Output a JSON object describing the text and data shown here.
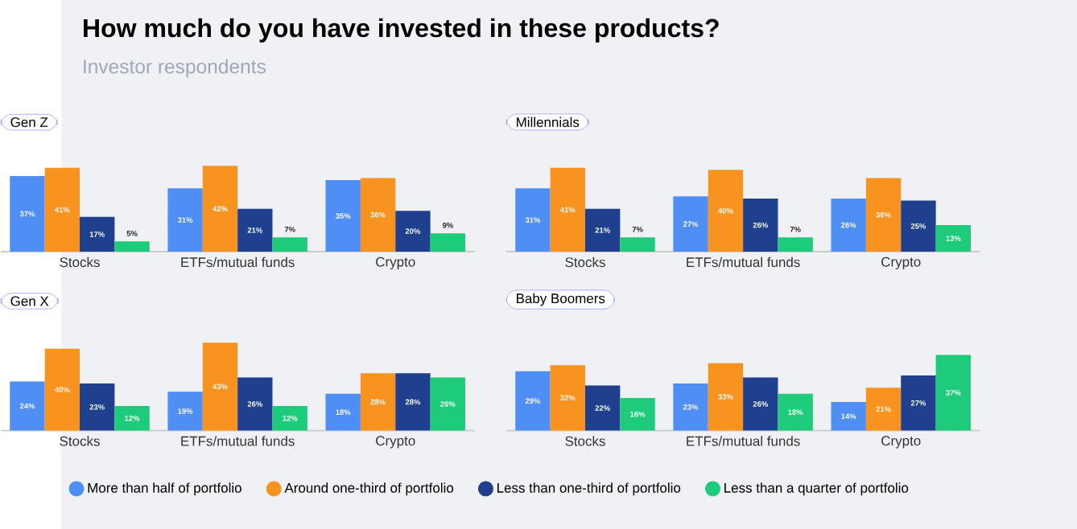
{
  "chart_data": [
    {
      "type": "other",
      "title": "How much do you have invested in these products?",
      "subtitle": "Investor respondents"
    },
    {
      "type": "bar",
      "title": "Gen Z",
      "categories": [
        "Stocks",
        "ETFs/mutual funds",
        "Crypto"
      ],
      "series": [
        {
          "color": "#4f8ef5",
          "values": [
            37,
            31,
            35
          ],
          "value_labels": [
            "37%",
            "31%",
            "35%"
          ]
        },
        {
          "color": "#f7931e",
          "values": [
            41,
            42,
            36
          ],
          "value_labels": [
            "41%",
            "42%",
            "36%"
          ]
        },
        {
          "color": "#1f3f8f",
          "values": [
            17,
            21,
            20
          ],
          "value_labels": [
            "17%",
            "21%",
            "20%"
          ]
        },
        {
          "color": "#1ecb7a",
          "values": [
            5,
            7,
            9
          ],
          "value_labels": [
            "5%",
            "7%",
            "9%"
          ]
        }
      ]
    },
    {
      "type": "bar",
      "title": "Millennials",
      "categories": [
        "Stocks",
        "ETFs/mutual funds",
        "Crypto"
      ],
      "series": [
        {
          "color": "#4f8ef5",
          "values": [
            31,
            27,
            26
          ],
          "value_labels": [
            "31%",
            "27%",
            "26%"
          ]
        },
        {
          "color": "#f7931e",
          "values": [
            41,
            40,
            36
          ],
          "value_labels": [
            "41%",
            "40%",
            "36%"
          ]
        },
        {
          "color": "#1f3f8f",
          "values": [
            21,
            26,
            25
          ],
          "value_labels": [
            "21%",
            "26%",
            "25%"
          ]
        },
        {
          "color": "#1ecb7a",
          "values": [
            7,
            7,
            13
          ],
          "value_labels": [
            "7%",
            "7%",
            "13%"
          ]
        }
      ]
    },
    {
      "type": "bar",
      "title": "Gen X",
      "categories": [
        "Stocks",
        "ETFs/mutual funds",
        "Crypto"
      ],
      "series": [
        {
          "color": "#4f8ef5",
          "values": [
            24,
            19,
            18
          ],
          "value_labels": [
            "24%",
            "19%",
            "18%"
          ]
        },
        {
          "color": "#f7931e",
          "values": [
            40,
            43,
            28
          ],
          "value_labels": [
            "40%",
            "43%",
            "28%"
          ]
        },
        {
          "color": "#1f3f8f",
          "values": [
            23,
            26,
            28
          ],
          "value_labels": [
            "23%",
            "26%",
            "28%"
          ]
        },
        {
          "color": "#1ecb7a",
          "values": [
            12,
            12,
            26
          ],
          "value_labels": [
            "12%",
            "12%",
            "26%"
          ]
        }
      ]
    },
    {
      "type": "bar",
      "title": "Baby Boomers",
      "categories": [
        "Stocks",
        "ETFs/mutual funds",
        "Crypto"
      ],
      "legend": "bottom",
      "series": [
        {
          "name": "More than half of portfolio",
          "color": "#4f8ef5",
          "values": [
            29,
            23,
            14
          ],
          "value_labels": [
            "29%",
            "23%",
            "14%"
          ]
        },
        {
          "name": "Around one-third of portfolio",
          "color": "#f7931e",
          "values": [
            32,
            33,
            21
          ],
          "value_labels": [
            "32%",
            "33%",
            "21%"
          ]
        },
        {
          "name": "Less than one-third of portfolio",
          "color": "#1f3f8f",
          "values": [
            22,
            26,
            27
          ],
          "value_labels": [
            "22%",
            "26%",
            "27%"
          ]
        },
        {
          "name": "Less than a quarter of portfolio",
          "color": "#1ecb7a",
          "values": [
            16,
            18,
            37
          ],
          "value_labels": [
            "16%",
            "18%",
            "37%"
          ]
        }
      ]
    }
  ]
}
